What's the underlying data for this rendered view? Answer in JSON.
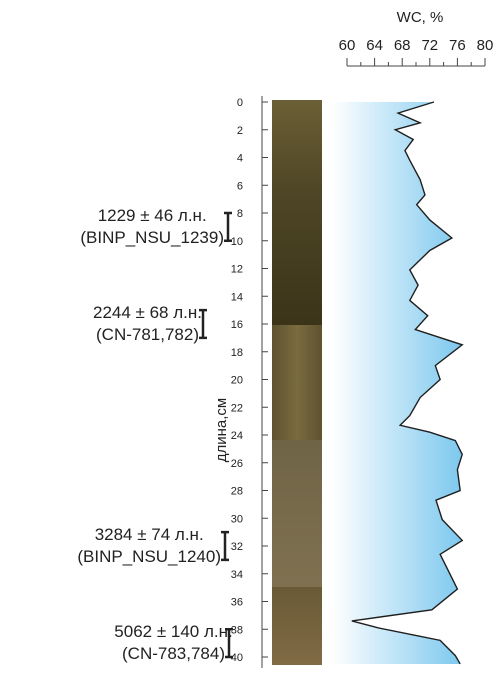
{
  "chart_data": {
    "type": "line",
    "title": "WC, %",
    "y_label": "длина,см",
    "xlim": [
      60,
      80
    ],
    "xticks": [
      60,
      64,
      68,
      72,
      76,
      80
    ],
    "xminorticks": [
      62,
      66,
      70,
      74,
      78
    ],
    "ylim": [
      0,
      40
    ],
    "yticks": [
      0,
      2,
      4,
      6,
      8,
      10,
      12,
      14,
      16,
      18,
      20,
      22,
      24,
      26,
      28,
      30,
      32,
      34,
      36,
      38,
      40
    ],
    "color": "#1f1f1f",
    "depth": [
      0,
      0.8,
      1.5,
      2,
      2.7,
      3.5,
      4.2,
      5.6,
      6.7,
      7.4,
      8.5,
      9.8,
      10.7,
      12.1,
      13.2,
      14.3,
      15.4,
      16.4,
      17.5,
      19,
      20,
      21.3,
      22.6,
      23.3,
      23.8,
      24.4,
      25.4,
      26.5,
      28,
      28.7,
      30.1,
      31.6,
      32.6,
      33.7,
      35.1,
      36.6,
      37.4,
      37.9,
      38.8,
      39.9,
      40.5
    ],
    "values": [
      72.6,
      67.4,
      70.6,
      67,
      69.6,
      68.4,
      69.1,
      70.6,
      71.3,
      70.1,
      72,
      75.2,
      72,
      69.1,
      70.3,
      69.1,
      71.7,
      69.9,
      76.7,
      72.8,
      73.5,
      70.6,
      69.1,
      67.7,
      72,
      75.7,
      76.7,
      76,
      76.4,
      72.9,
      73.8,
      76.7,
      73.5,
      74.6,
      76,
      72.3,
      60.7,
      64.5,
      73.5,
      75.7,
      76.4
    ],
    "annotations": [
      {
        "label": "1229 ± 46 л.н.",
        "code": "(BINP_NSU_1239)",
        "depth_range": [
          8,
          10
        ]
      },
      {
        "label": "2244 ± 68 л.н.",
        "code": "(CN-781,782)",
        "depth_range": [
          15,
          17
        ]
      },
      {
        "label": "3284 ± 74 л.н.",
        "code": "(BINP_NSU_1240)",
        "depth_range": [
          31,
          33
        ]
      },
      {
        "label": "5062 ± 140 л.н.",
        "code": "(CN-783,784)",
        "depth_range": [
          38,
          40
        ]
      }
    ]
  }
}
